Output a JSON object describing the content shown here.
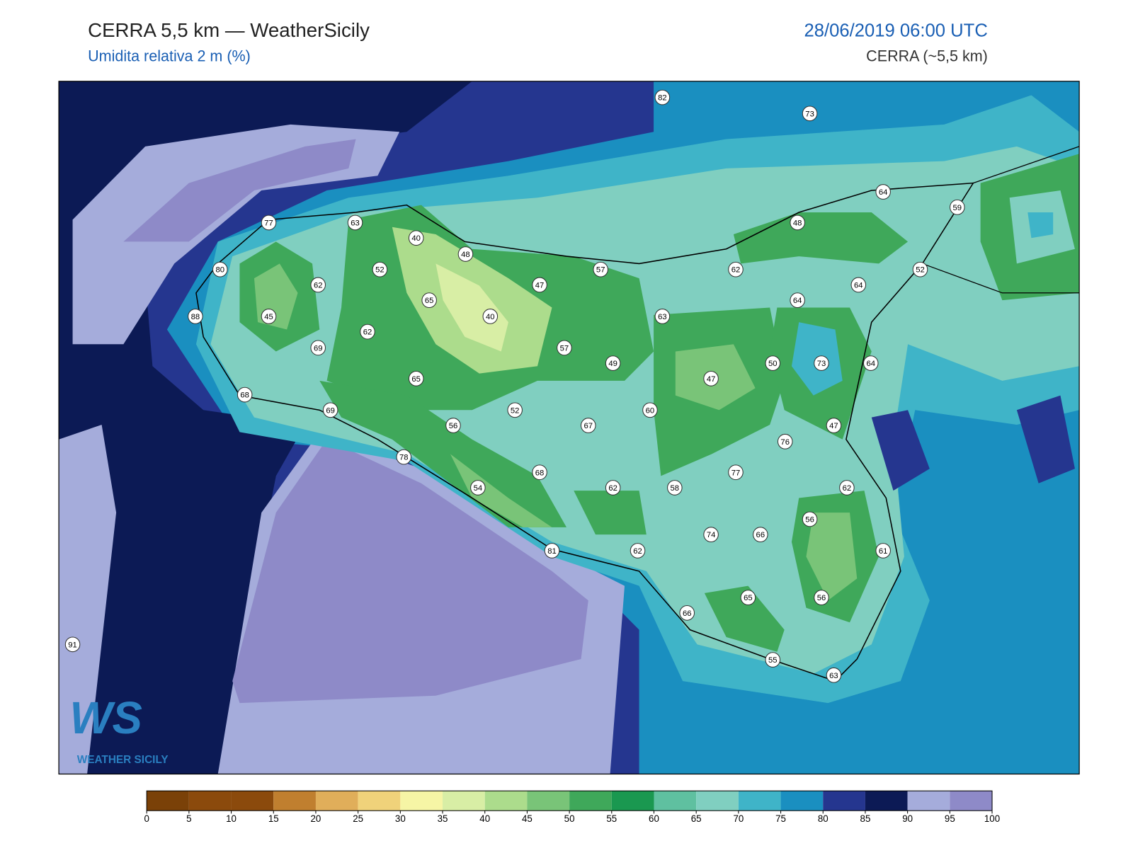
{
  "header": {
    "title": "CERRA 5,5 km — WeatherSicily",
    "subtitle": "Umidita relativa 2 m (%)",
    "date": "28/06/2019 06:00 UTC",
    "model": "CERRA (~5,5 km)"
  },
  "stations": [
    82,
    73,
    64,
    59,
    77,
    63,
    40,
    48,
    48,
    52,
    80,
    57,
    62,
    52,
    62,
    47,
    64,
    65,
    64,
    88,
    45,
    40,
    63,
    62,
    69,
    57,
    50,
    73,
    64,
    49,
    65,
    47,
    68,
    69,
    52,
    60,
    56,
    67,
    47,
    76,
    78,
    68,
    77,
    62,
    54,
    62,
    58,
    56,
    74,
    66,
    81,
    62,
    61,
    65,
    56,
    66,
    91,
    55,
    63
  ],
  "colorbar": {
    "ticks": [
      0,
      5,
      10,
      15,
      20,
      25,
      30,
      35,
      40,
      45,
      50,
      55,
      60,
      65,
      70,
      75,
      80,
      85,
      90,
      95,
      100
    ],
    "colors": [
      "#7a4108",
      "#8b4a0c",
      "#8b4a0c",
      "#c07f2f",
      "#e0ae5a",
      "#f0d27a",
      "#f6f5a5",
      "#d8eea5",
      "#acdc8c",
      "#79c478",
      "#3fa85a",
      "#1a9850",
      "#5fc0a0",
      "#80cfc0",
      "#3fb4c8",
      "#1a8fc0",
      "#25368f",
      "#0c1a55",
      "#a5acdb",
      "#8e8ac8"
    ]
  },
  "logo": {
    "mark": "WS",
    "name": "WEATHER SICILY"
  }
}
